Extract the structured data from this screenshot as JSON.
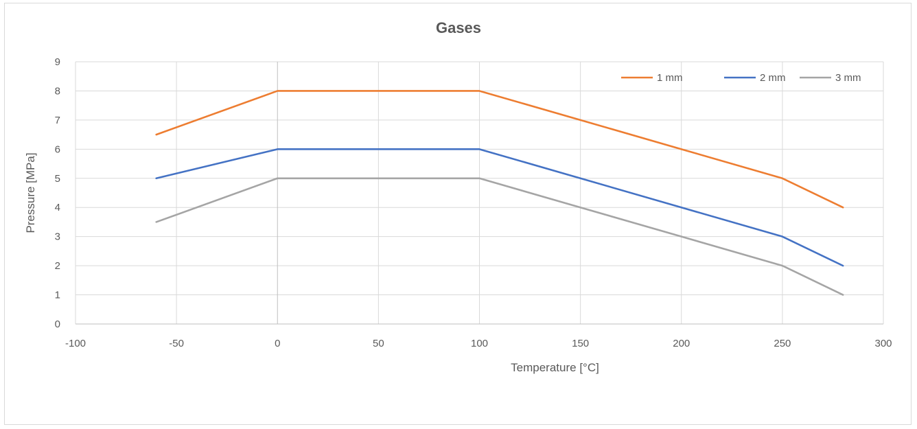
{
  "chart_data": {
    "type": "line",
    "title": "Gases",
    "xlabel": "Temperature [°C]",
    "ylabel": "Pressure [MPa]",
    "xlim": [
      -100,
      300
    ],
    "ylim": [
      0,
      9
    ],
    "xticks": [
      -100,
      -50,
      0,
      50,
      100,
      150,
      200,
      250,
      300
    ],
    "yticks": [
      0,
      1,
      2,
      3,
      4,
      5,
      6,
      7,
      8,
      9
    ],
    "grid": true,
    "legend_position": "top-right",
    "series": [
      {
        "name": "1 mm",
        "color": "#ED7D31",
        "points": [
          [
            -60,
            6.5
          ],
          [
            0,
            8
          ],
          [
            100,
            8
          ],
          [
            150,
            7
          ],
          [
            200,
            6
          ],
          [
            250,
            5
          ],
          [
            280,
            4
          ]
        ]
      },
      {
        "name": "2 mm",
        "color": "#4472C4",
        "points": [
          [
            -60,
            5
          ],
          [
            0,
            6
          ],
          [
            100,
            6
          ],
          [
            150,
            5
          ],
          [
            200,
            4
          ],
          [
            250,
            3
          ],
          [
            280,
            2
          ]
        ]
      },
      {
        "name": "3 mm",
        "color": "#A5A5A5",
        "points": [
          [
            -60,
            3.5
          ],
          [
            0,
            5
          ],
          [
            100,
            5
          ],
          [
            150,
            4
          ],
          [
            200,
            3
          ],
          [
            250,
            2
          ],
          [
            280,
            1
          ]
        ]
      }
    ]
  }
}
